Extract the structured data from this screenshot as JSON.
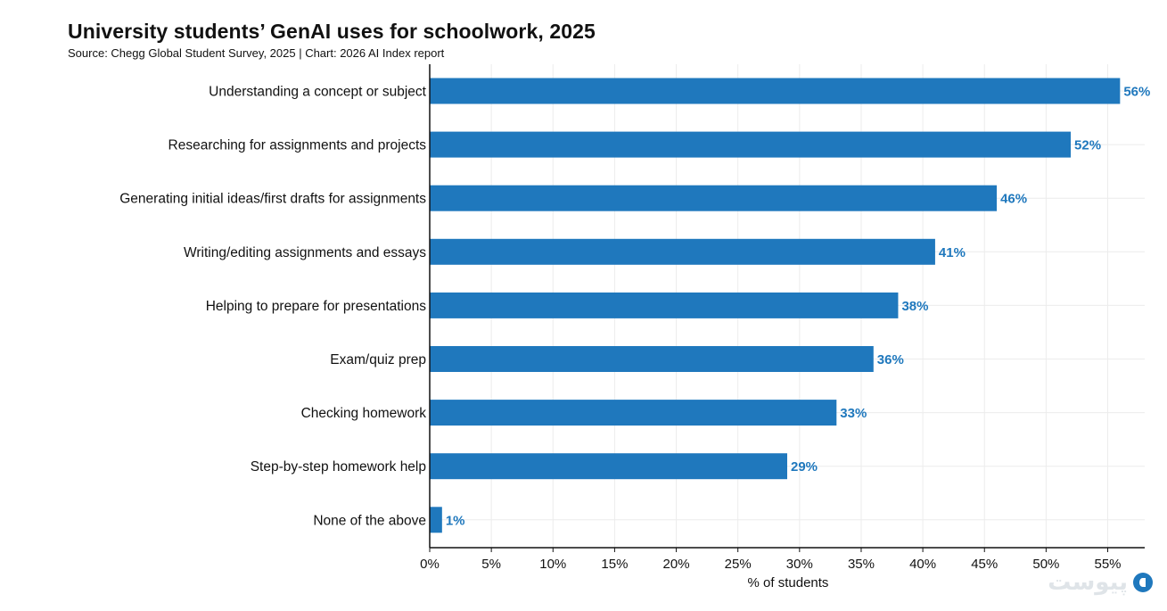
{
  "chart_data": {
    "type": "bar",
    "orientation": "horizontal",
    "title": "University students’ GenAI uses for schoolwork, 2025",
    "subtitle": "Source: Chegg Global Student Survey, 2025 | Chart: 2026 AI Index report",
    "xlabel": "% of students",
    "ylabel": "",
    "categories": [
      "Understanding a concept or subject",
      "Researching for assignments and projects",
      "Generating initial ideas/first drafts for assignments",
      "Writing/editing assignments and essays",
      "Helping to prepare for presentations",
      "Exam/quiz prep",
      "Checking homework",
      "Step-by-step homework help",
      "None of the above"
    ],
    "values": [
      56,
      52,
      46,
      41,
      38,
      36,
      33,
      29,
      1
    ],
    "value_labels": [
      "56%",
      "52%",
      "46%",
      "41%",
      "38%",
      "36%",
      "33%",
      "29%",
      "1%"
    ],
    "xlim": [
      0,
      58
    ],
    "xticks": [
      0,
      5,
      10,
      15,
      20,
      25,
      30,
      35,
      40,
      45,
      50,
      55
    ],
    "xtick_labels": [
      "0%",
      "5%",
      "10%",
      "15%",
      "20%",
      "25%",
      "30%",
      "35%",
      "40%",
      "45%",
      "50%",
      "55%"
    ],
    "grid": true,
    "legend": "none",
    "bar_color": "#1f78bd",
    "label_color": "#1f78bd"
  },
  "watermark": {
    "text": "پیوست",
    "logo_icon": "piyast-logo-icon"
  }
}
